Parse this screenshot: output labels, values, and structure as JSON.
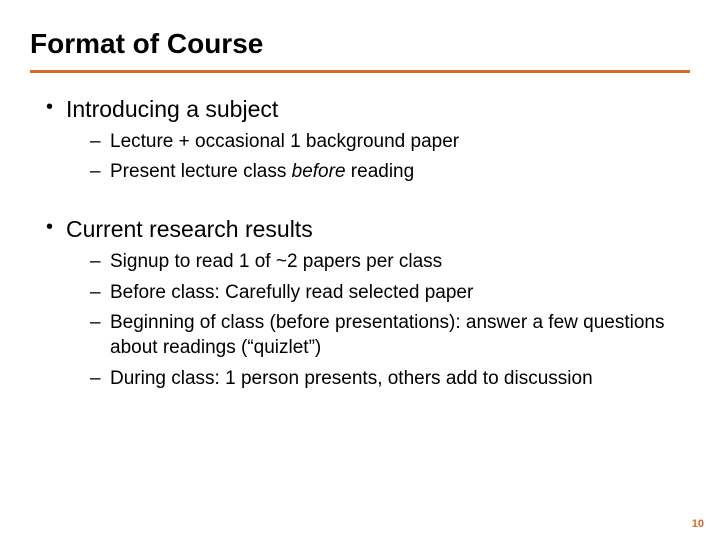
{
  "title": "Format of Course",
  "divider_color": "#d96a28",
  "sections": [
    {
      "bullet": "Introducing a subject",
      "subs": [
        {
          "pre": "Lecture  +  occasional 1 background paper"
        },
        {
          "pre": "Present lecture class ",
          "italic": "before",
          "post": " reading"
        }
      ]
    },
    {
      "bullet": "Current research results",
      "subs": [
        {
          "pre": "Signup to read 1 of ~2 papers per class"
        },
        {
          "pre": "Before class:  Carefully read selected paper"
        },
        {
          "pre": "Beginning of class (before presentations): answer a few questions about readings (“quizlet”)"
        },
        {
          "pre": "During class: 1 person presents, others add to discussion"
        }
      ]
    }
  ],
  "page_number": "10"
}
